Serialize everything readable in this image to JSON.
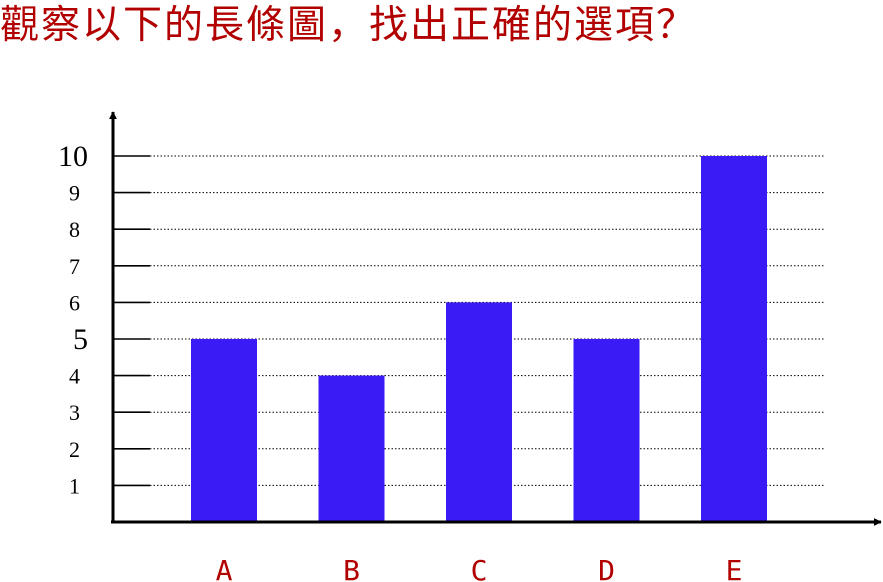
{
  "question": "觀察以下的長條圖，找出正確的選項？",
  "colors": {
    "question": "#b20000",
    "bar": "#3a1af5",
    "x_label": "#b20000",
    "axis": "#000000"
  },
  "chart_data": {
    "type": "bar",
    "title": "",
    "xlabel": "",
    "ylabel": "",
    "categories": [
      "A",
      "B",
      "C",
      "D",
      "E"
    ],
    "values": [
      5,
      4,
      6,
      5,
      10
    ],
    "ylim": [
      0,
      10
    ],
    "yticks": [
      "1",
      "2",
      "3",
      "4",
      "5",
      "6",
      "7",
      "8",
      "9",
      "10"
    ],
    "grid": true,
    "legend": "none"
  }
}
